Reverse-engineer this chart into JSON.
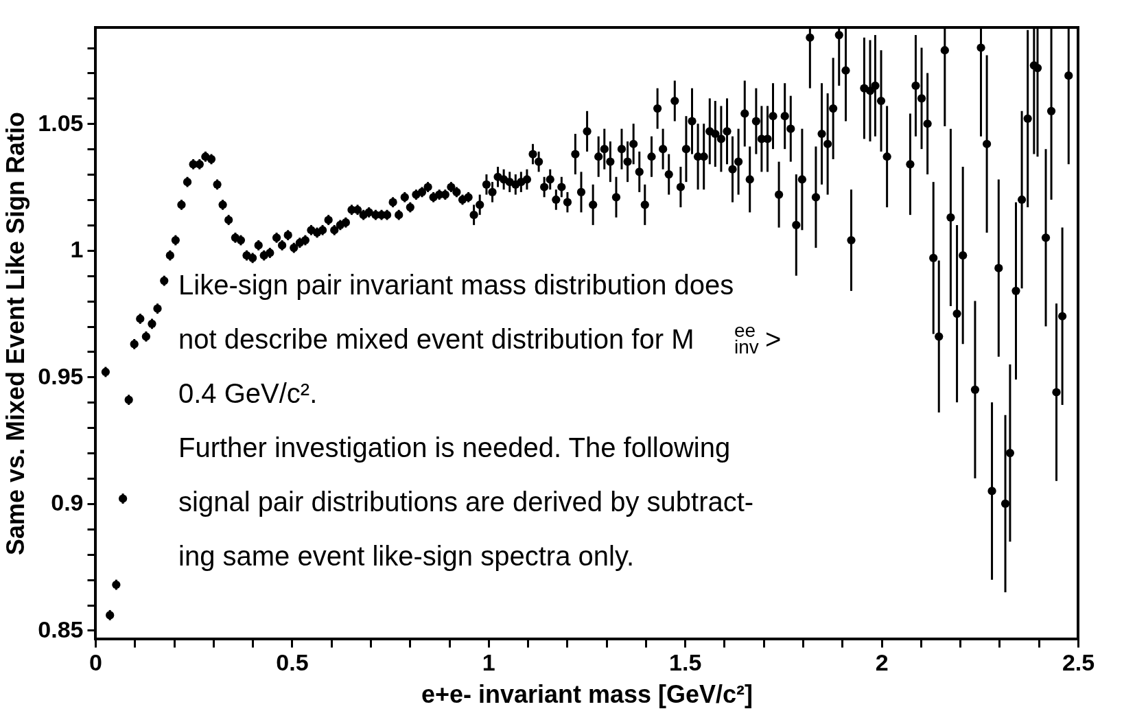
{
  "chart_data": {
    "type": "scatter",
    "xlabel": "e+e- invariant mass [GeV/c²]",
    "ylabel": "Same vs. Mixed Event Like Sign Ratio",
    "annotations": [
      "Like-sign pair invariant mass distribution does",
      "not describe mixed event distribution for M$^{ee}$$_{inv}$ >",
      "0.4 GeV/c².",
      "Further investigation is needed.  The following",
      "signal pair distributions are derived by subtract-",
      "ing same event like-sign spectra only."
    ],
    "marker": "circle",
    "grid": false,
    "xlim": [
      0,
      2.5
    ],
    "ylim": [
      0.8466,
      1.088
    ],
    "xticks": [
      0,
      {
        "value": 0.1,
        "label": null
      },
      {
        "value": 0.2,
        "label": null
      },
      {
        "value": 0.3,
        "label": null
      },
      {
        "value": 0.4,
        "label": null
      },
      0.5,
      {
        "value": 0.6,
        "label": null
      },
      {
        "value": 0.7,
        "label": null
      },
      {
        "value": 0.8,
        "label": null
      },
      {
        "value": 0.9,
        "label": null
      },
      1,
      {
        "value": 1.1,
        "label": null
      },
      {
        "value": 1.2,
        "label": null
      },
      {
        "value": 1.3,
        "label": null
      },
      {
        "value": 1.4,
        "label": null
      },
      1.5,
      {
        "value": 1.6,
        "label": null
      },
      {
        "value": 1.7,
        "label": null
      },
      {
        "value": 1.8,
        "label": null
      },
      {
        "value": 1.9,
        "label": null
      },
      2,
      {
        "value": 2.1,
        "label": null
      },
      {
        "value": 2.2,
        "label": null
      },
      {
        "value": 2.3,
        "label": null
      },
      {
        "value": 2.4,
        "label": null
      },
      2.5
    ],
    "yticks": [
      0.85,
      {
        "value": 0.86,
        "label": null
      },
      {
        "value": 0.87,
        "label": null
      },
      {
        "value": 0.88,
        "label": null
      },
      {
        "value": 0.89,
        "label": null
      },
      0.9,
      {
        "value": 0.91,
        "label": null
      },
      {
        "value": 0.92,
        "label": null
      },
      {
        "value": 0.93,
        "label": null
      },
      {
        "value": 0.94,
        "label": null
      },
      0.95,
      {
        "value": 0.96,
        "label": null
      },
      {
        "value": 0.97,
        "label": null
      },
      {
        "value": 0.98,
        "label": null
      },
      {
        "value": 0.99,
        "label": null
      },
      1,
      {
        "value": 1.01,
        "label": null
      },
      {
        "value": 1.02,
        "label": null
      },
      {
        "value": 1.03,
        "label": null
      },
      {
        "value": 1.04,
        "label": null
      },
      1.05,
      {
        "value": 1.06,
        "label": null
      },
      {
        "value": 1.07,
        "label": null
      },
      {
        "value": 1.08,
        "label": null
      }
    ],
    "series": [
      {
        "color": "#000000",
        "x": [
          0.026,
          0.037,
          0.053,
          0.07,
          0.085,
          0.099,
          0.114,
          0.129,
          0.144,
          0.158,
          0.175,
          0.19,
          0.204,
          0.219,
          0.234,
          0.249,
          0.265,
          0.28,
          0.295,
          0.31,
          0.324,
          0.339,
          0.356,
          0.37,
          0.385,
          0.4,
          0.415,
          0.429,
          0.444,
          0.461,
          0.475,
          0.49,
          0.505,
          0.52,
          0.534,
          0.549,
          0.564,
          0.578,
          0.593,
          0.608,
          0.623,
          0.637,
          0.652,
          0.667,
          0.682,
          0.696,
          0.713,
          0.728,
          0.742,
          0.757,
          0.772,
          0.787,
          0.801,
          0.816,
          0.831,
          0.846,
          0.86,
          0.875,
          0.89,
          0.905,
          0.919,
          0.934,
          0.949,
          0.963,
          0.978,
          0.995,
          1.01,
          1.024,
          1.039,
          1.054,
          1.069,
          1.083,
          1.098,
          1.113,
          1.128,
          1.142,
          1.157,
          1.172,
          1.186,
          1.201,
          1.221,
          1.236,
          1.251,
          1.266,
          1.28,
          1.295,
          1.31,
          1.325,
          1.339,
          1.354,
          1.369,
          1.384,
          1.398,
          1.415,
          1.43,
          1.444,
          1.459,
          1.474,
          1.489,
          1.503,
          1.518,
          1.533,
          1.548,
          1.563,
          1.577,
          1.592,
          1.607,
          1.621,
          1.636,
          1.652,
          1.665,
          1.681,
          1.695,
          1.71,
          1.724,
          1.739,
          1.754,
          1.769,
          1.783,
          1.798,
          1.818,
          1.833,
          1.848,
          1.863,
          1.877,
          1.892,
          1.909,
          1.923,
          1.956,
          1.971,
          1.984,
          1.999,
          2.014,
          2.073,
          2.087,
          2.102,
          2.117,
          2.132,
          2.146,
          2.161,
          2.176,
          2.192,
          2.207,
          2.238,
          2.253,
          2.268,
          2.281,
          2.298,
          2.315,
          2.327,
          2.342,
          2.357,
          2.372,
          2.388,
          2.397,
          2.418,
          2.432,
          2.445,
          2.46,
          2.476
        ],
        "values": [
          0.952,
          0.856,
          0.868,
          0.902,
          0.941,
          0.963,
          0.973,
          0.966,
          0.971,
          0.977,
          0.988,
          0.998,
          1.004,
          1.018,
          1.027,
          1.034,
          1.034,
          1.037,
          1.036,
          1.026,
          1.018,
          1.012,
          1.005,
          1.004,
          0.998,
          0.997,
          1.002,
          0.998,
          0.999,
          1.005,
          1.002,
          1.006,
          1.001,
          1.003,
          1.004,
          1.008,
          1.007,
          1.008,
          1.012,
          1.008,
          1.01,
          1.011,
          1.016,
          1.016,
          1.014,
          1.015,
          1.014,
          1.014,
          1.014,
          1.019,
          1.014,
          1.021,
          1.017,
          1.022,
          1.023,
          1.025,
          1.021,
          1.022,
          1.022,
          1.025,
          1.023,
          1.02,
          1.021,
          1.014,
          1.018,
          1.026,
          1.023,
          1.029,
          1.028,
          1.027,
          1.026,
          1.027,
          1.028,
          1.038,
          1.035,
          1.025,
          1.028,
          1.02,
          1.025,
          1.019,
          1.038,
          1.023,
          1.047,
          1.018,
          1.037,
          1.04,
          1.035,
          1.021,
          1.04,
          1.035,
          1.042,
          1.031,
          1.018,
          1.037,
          1.056,
          1.04,
          1.03,
          1.059,
          1.025,
          1.04,
          1.051,
          1.037,
          1.037,
          1.047,
          1.046,
          1.044,
          1.047,
          1.032,
          1.035,
          1.054,
          1.028,
          1.051,
          1.044,
          1.044,
          1.053,
          1.022,
          1.053,
          1.048,
          1.01,
          1.028,
          1.084,
          1.021,
          1.046,
          1.042,
          1.056,
          1.085,
          1.071,
          1.004,
          1.064,
          1.063,
          1.065,
          1.059,
          1.037,
          1.034,
          1.065,
          1.06,
          1.05,
          0.997,
          0.966,
          1.079,
          1.013,
          0.975,
          0.998,
          0.945,
          1.08,
          1.042,
          0.905,
          0.993,
          0.9,
          0.92,
          0.984,
          1.02,
          1.052,
          1.073,
          1.072,
          1.005,
          1.055,
          0.944,
          0.974,
          1.069
        ],
        "errors": [
          0.002,
          0.002,
          0.002,
          0.002,
          0.002,
          0.002,
          0.002,
          0.002,
          0.002,
          0.002,
          0.002,
          0.002,
          0.002,
          0.002,
          0.002,
          0.002,
          0.002,
          0.002,
          0.002,
          0.002,
          0.002,
          0.002,
          0.002,
          0.002,
          0.002,
          0.002,
          0.002,
          0.002,
          0.002,
          0.002,
          0.002,
          0.002,
          0.002,
          0.002,
          0.002,
          0.002,
          0.002,
          0.002,
          0.002,
          0.002,
          0.002,
          0.002,
          0.002,
          0.002,
          0.002,
          0.002,
          0.002,
          0.002,
          0.002,
          0.002,
          0.002,
          0.002,
          0.002,
          0.002,
          0.002,
          0.002,
          0.002,
          0.002,
          0.002,
          0.002,
          0.002,
          0.002,
          0.002,
          0.004,
          0.004,
          0.004,
          0.004,
          0.004,
          0.004,
          0.004,
          0.004,
          0.004,
          0.004,
          0.004,
          0.004,
          0.004,
          0.004,
          0.004,
          0.004,
          0.004,
          0.008,
          0.008,
          0.008,
          0.008,
          0.008,
          0.008,
          0.008,
          0.008,
          0.008,
          0.008,
          0.008,
          0.008,
          0.008,
          0.008,
          0.008,
          0.008,
          0.008,
          0.008,
          0.008,
          0.013,
          0.013,
          0.013,
          0.013,
          0.013,
          0.013,
          0.013,
          0.013,
          0.013,
          0.013,
          0.013,
          0.013,
          0.013,
          0.013,
          0.013,
          0.013,
          0.013,
          0.013,
          0.013,
          0.02,
          0.02,
          0.02,
          0.02,
          0.02,
          0.02,
          0.02,
          0.02,
          0.02,
          0.02,
          0.02,
          0.02,
          0.02,
          0.02,
          0.02,
          0.02,
          0.02,
          0.02,
          0.02,
          0.03,
          0.03,
          0.03,
          0.035,
          0.035,
          0.035,
          0.035,
          0.035,
          0.035,
          0.035,
          0.035,
          0.035,
          0.035,
          0.035,
          0.035,
          0.035,
          0.035,
          0.035,
          0.035,
          0.035,
          0.035,
          0.035,
          0.035
        ]
      }
    ]
  }
}
